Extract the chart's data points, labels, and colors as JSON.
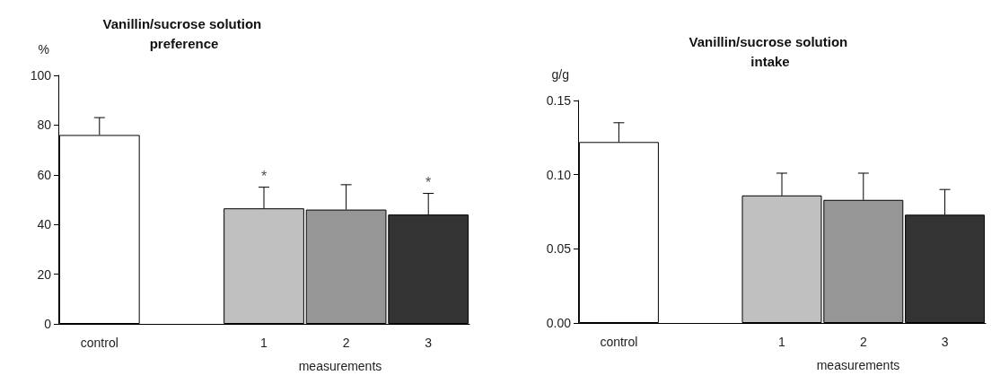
{
  "chart_data": [
    {
      "type": "bar",
      "title": "Vanillin/sucrose solution preference",
      "ylabel": "%",
      "xlabel": "measurements",
      "categories": [
        "control",
        null,
        "1",
        "2",
        "3"
      ],
      "values": [
        76,
        null,
        46.5,
        46,
        44
      ],
      "colors": [
        "#ffffff",
        null,
        "#c0c0c0",
        "#969696",
        "#333333"
      ],
      "errors": [
        [
          76,
          83
        ],
        null,
        [
          46.5,
          55
        ],
        [
          46,
          56
        ],
        [
          44,
          52.5
        ]
      ],
      "ylim": [
        0,
        100
      ],
      "yticks": [
        0,
        20,
        40,
        60,
        80,
        100
      ],
      "grid": false,
      "annotations": [
        {
          "text": "*",
          "x": "1",
          "y": 55
        },
        {
          "text": "*",
          "x": "3",
          "y": 52.5
        }
      ]
    },
    {
      "type": "bar",
      "title": "Vanillin/sucrose solution intake",
      "ylabel": "g/g",
      "xlabel": "measurements",
      "categories": [
        "control",
        null,
        "1",
        "2",
        "3"
      ],
      "values": [
        0.122,
        null,
        0.086,
        0.083,
        0.073
      ],
      "colors": [
        "#ffffff",
        null,
        "#c0c0c0",
        "#969696",
        "#333333"
      ],
      "errors": [
        [
          0.122,
          0.135
        ],
        null,
        [
          0.086,
          0.101
        ],
        [
          0.083,
          0.101
        ],
        [
          0.073,
          0.09
        ]
      ],
      "ylim": [
        0,
        0.15
      ],
      "yticks": [
        {
          "value": 0,
          "label": "0.00"
        },
        {
          "value": 0.05,
          "label": "0.05"
        },
        {
          "value": 0.1,
          "label": "0.10"
        },
        {
          "value": 0.15,
          "label": "0.15"
        }
      ],
      "grid": false
    }
  ]
}
